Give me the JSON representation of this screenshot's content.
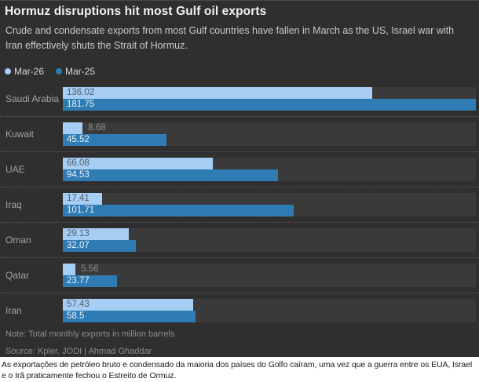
{
  "header": {
    "title": "Hormuz disruptions hit most Gulf oil exports",
    "subtitle": "Crude and condensate exports from most Gulf countries have fallen in March as the US, Israel war with Iran effectively shuts the Strait of Hormuz."
  },
  "colors": {
    "panel_background": "#2f2f2f",
    "bar_track": "#3a3a3a",
    "series_mar26": "#a6cef4",
    "series_mar25": "#2f7cb4"
  },
  "chart_data": {
    "type": "bar",
    "orientation": "horizontal",
    "title": "Hormuz disruptions hit most Gulf oil exports",
    "categories": [
      "Saudi Arabia",
      "Kuwait",
      "UAE",
      "Iraq",
      "Oman",
      "Qatar",
      "Iran"
    ],
    "series": [
      {
        "name": "Mar-26",
        "color": "#a6cef4",
        "values": [
          136.02,
          8.68,
          66.08,
          17.41,
          29.13,
          5.56,
          57.43
        ]
      },
      {
        "name": "Mar-25",
        "color": "#2f7cb4",
        "values": [
          181.75,
          45.52,
          94.53,
          101.71,
          32.07,
          23.77,
          58.5
        ]
      }
    ],
    "xlim": [
      0,
      181.75
    ],
    "value_labels": true,
    "grid": false,
    "legend_position": "top-left",
    "units": "million barrels"
  },
  "footer": {
    "note": "Note: Total monthly exports in million barrels",
    "source": "Source: Kpler, JODI | Ahmad Ghaddar"
  },
  "caption": "As exportações de petróleo bruto e condensado da maioria dos países do Golfo caíram, uma vez que a guerra entre os EUA, Israel e o Irã praticamente fechou o Estreito de Ormuz."
}
